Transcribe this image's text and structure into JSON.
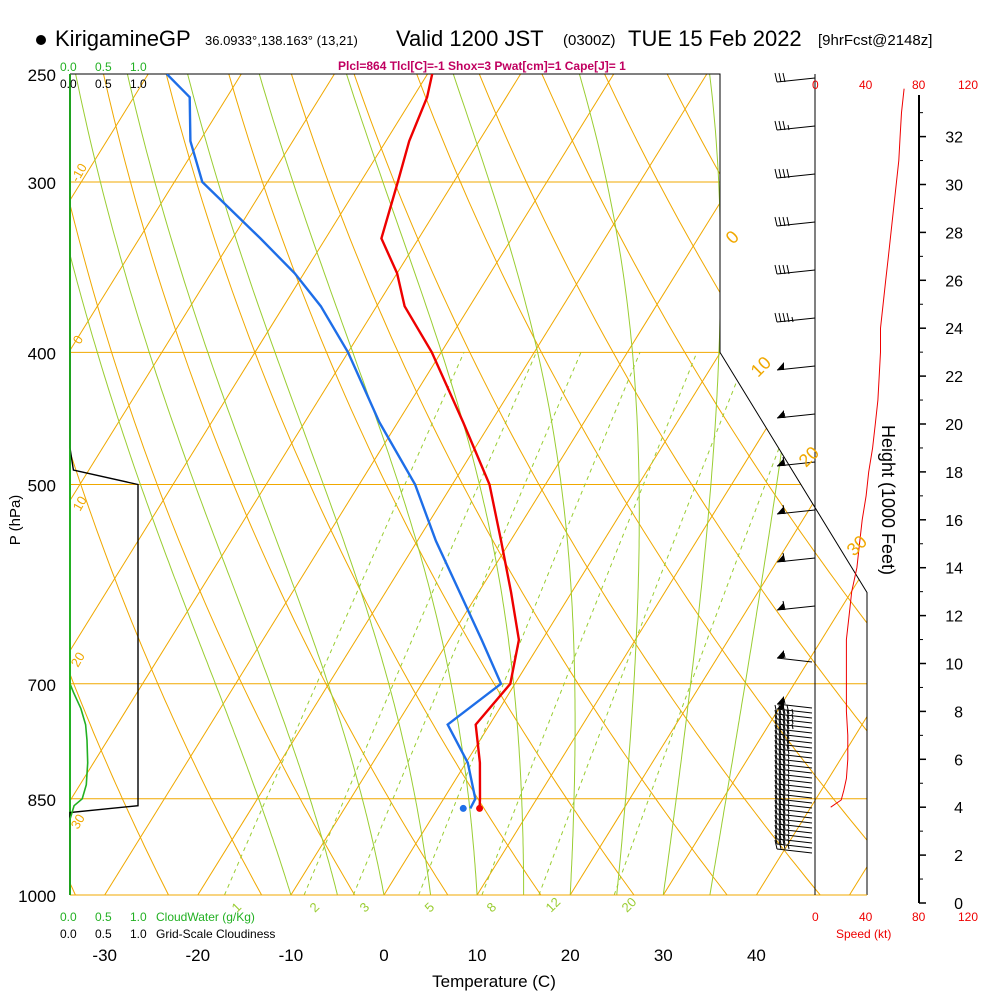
{
  "header": {
    "station": "KirigamineGP",
    "coords": "36.0933°,138.163° (13,21)",
    "valid_label": "Valid 1200 JST",
    "utc": "(0300Z)",
    "date": "TUE 15 Feb 2022",
    "forecast": "[9hrFcst@2148z]"
  },
  "indices": "Plcl=864 Tlcl[C]=-1 Shox=3 Pwat[cm]=1 Cape[J]= 1",
  "colors": {
    "isotherm": "#f0a800",
    "dry_adiabat": "#f0a800",
    "moist_adiabat": "#9acd32",
    "mixing_ratio": "#9acd32",
    "temperature": "#ee0000",
    "dewpoint": "#1e6ee8",
    "cloud_water": "#22b022",
    "cloudiness": "#000000",
    "wind_speed": "#ee0000",
    "indices_text": "#c00060"
  },
  "scales": {
    "cloud_water_top": [
      "0.0",
      "0.5",
      "1.0"
    ],
    "cloudiness_top": [
      "0.0",
      "0.5",
      "1.0"
    ],
    "cloud_water_bottom": [
      "0.0",
      "0.5",
      "1.0"
    ],
    "cloud_water_label": "CloudWater (g/Kg)",
    "cloudiness_bottom": [
      "0.0",
      "0.5",
      "1.0"
    ],
    "cloudiness_label": "Grid-Scale Cloudiness",
    "speed_top": [
      "0",
      "40",
      "80",
      "120"
    ],
    "speed_bottom": [
      "0",
      "40",
      "80",
      "120"
    ],
    "speed_label": "Speed (kt)"
  },
  "chart_data": {
    "type": "line",
    "title": "Skew-T log-P sounding",
    "xlabel": "Temperature (C)",
    "ylabel": "P (hPa)",
    "y2label": "Height (1000 Feet)",
    "xlim": [
      -34,
      51
    ],
    "ylim": [
      1000,
      250
    ],
    "x_ticks": [
      -30,
      -20,
      -10,
      0,
      10,
      20,
      30,
      40
    ],
    "y_ticks": [
      250,
      300,
      400,
      500,
      700,
      850,
      1000
    ],
    "height_ticks": [
      0,
      2,
      4,
      6,
      8,
      10,
      12,
      14,
      16,
      18,
      20,
      22,
      24,
      26,
      28,
      30,
      32
    ],
    "dry_adiabat_labels": [
      "-10",
      "0",
      "10",
      "20",
      "30",
      "0",
      "10",
      "20",
      "30"
    ],
    "mixing_ratio_labels": [
      "1",
      "2",
      "3",
      "5",
      "8",
      "12",
      "20"
    ],
    "series": [
      {
        "name": "Temperature",
        "p": [
          864,
          850,
          800,
          750,
          700,
          650,
          600,
          550,
          500,
          450,
          400,
          370,
          350,
          330,
          300,
          280,
          260,
          250
        ],
        "t": [
          4.5,
          3.9,
          1.5,
          -1.5,
          -0.5,
          -2.5,
          -6.5,
          -11,
          -16,
          -23,
          -31,
          -37,
          -40,
          -44,
          -46,
          -47.5,
          -48.5,
          -49.5
        ]
      },
      {
        "name": "Dewpoint",
        "p": [
          864,
          850,
          800,
          750,
          700,
          650,
          600,
          550,
          500,
          450,
          400,
          370,
          350,
          330,
          300,
          280,
          260,
          250
        ],
        "td": [
          3.5,
          3.4,
          0.2,
          -4.5,
          -1.5,
          -6.5,
          -12,
          -18,
          -24,
          -32,
          -40,
          -46,
          -51,
          -57,
          -67,
          -71,
          -74,
          -78
        ]
      },
      {
        "name": "CloudWater",
        "p": [
          1000,
          880,
          860,
          850,
          830,
          800,
          770,
          750,
          730,
          710,
          700,
          500,
          250
        ],
        "value": [
          0.0,
          0.0,
          0.06,
          0.18,
          0.24,
          0.26,
          0.25,
          0.23,
          0.16,
          0.05,
          0.0,
          0.0,
          0.0
        ]
      },
      {
        "name": "Cloudiness",
        "p": [
          1000,
          870,
          860,
          850,
          700,
          600,
          500,
          488,
          470,
          250
        ],
        "value": [
          0.0,
          0.0,
          1.0,
          1.0,
          1.0,
          1.0,
          1.0,
          0.05,
          0.0,
          0.0
        ]
      },
      {
        "name": "WindSpeed",
        "height_kft": [
          4.0,
          4.3,
          4.7,
          5.2,
          6.0,
          7.0,
          8.0,
          9.0,
          10.0,
          11.0,
          12.0,
          13.0,
          14.0,
          15.0,
          16.0,
          17.0,
          18.0,
          19.0,
          20.0,
          21.0,
          22.0,
          23.0,
          24.0,
          25.0,
          26.0,
          27.0,
          28.0,
          29.0,
          30.0,
          31.0,
          32.0,
          33.0,
          34.0
        ],
        "kt": [
          12,
          20,
          22,
          24,
          25,
          25,
          24,
          24,
          24,
          24,
          26,
          28,
          32,
          34,
          36,
          39,
          41,
          44,
          46,
          48,
          49,
          50,
          50,
          52,
          54,
          56,
          58,
          60,
          62,
          64,
          65,
          66,
          68
        ]
      }
    ],
    "wind_barbs_kt": [
      30,
      35,
      40,
      40,
      40,
      45,
      50,
      55,
      60,
      60,
      60,
      60,
      55,
      55,
      50,
      45,
      45,
      45,
      45,
      40,
      40,
      40,
      40,
      40,
      35,
      35,
      35,
      35,
      35,
      35,
      35,
      35,
      35,
      35,
      35,
      35,
      35,
      35,
      35,
      35,
      35,
      35,
      35
    ]
  }
}
